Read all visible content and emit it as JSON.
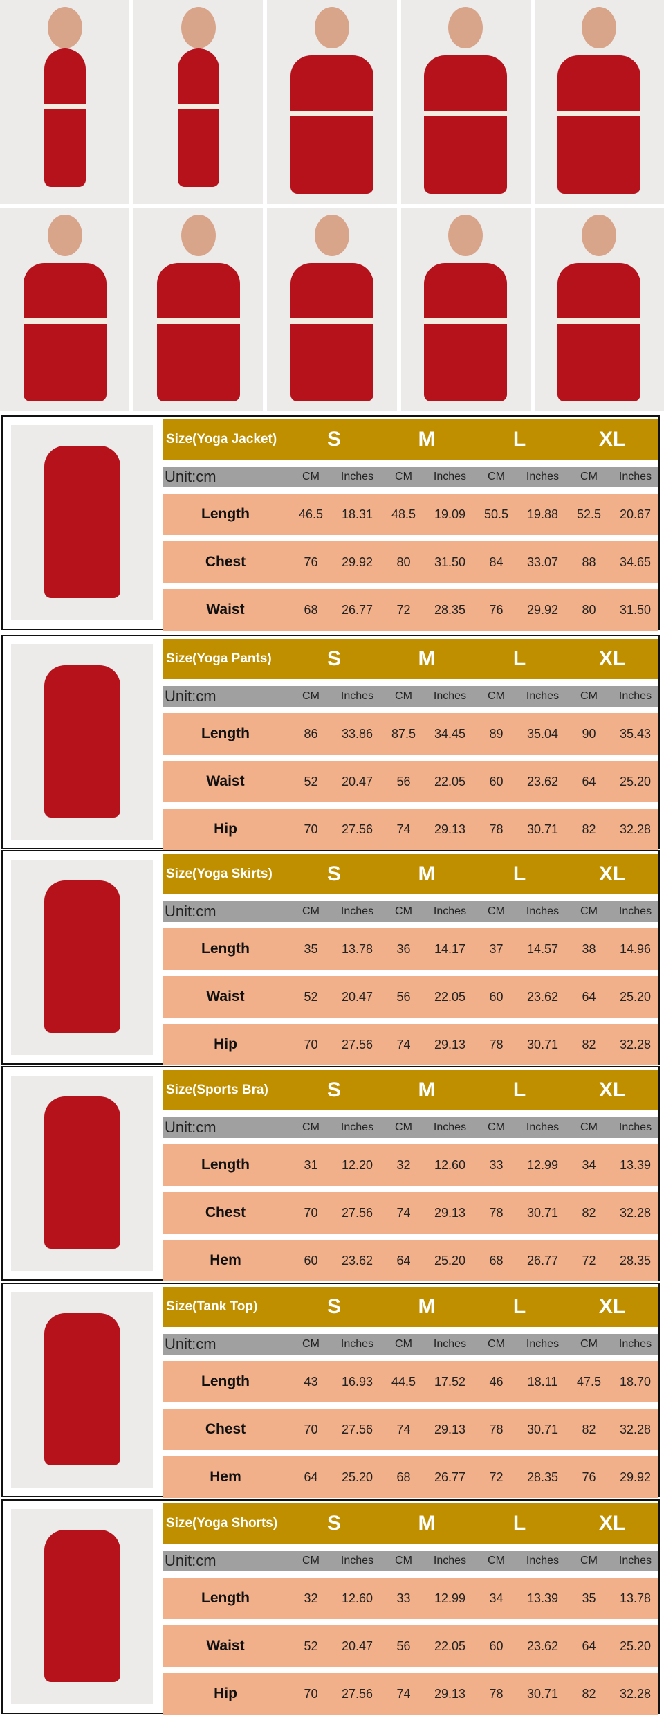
{
  "colors": {
    "header": "#bf8f00",
    "unit_row": "#a0a0a0",
    "data_row": "#f2b08a",
    "garment": "#b5121b"
  },
  "sizes": [
    "S",
    "M",
    "L",
    "XL"
  ],
  "unit_label": "Unit:cm",
  "col_units": [
    "CM",
    "Inches",
    "CM",
    "Inches",
    "CM",
    "Inches",
    "CM",
    "Inches"
  ],
  "tables": [
    {
      "title": "Size(Yoga Jacket)",
      "rows": [
        {
          "label": "Length",
          "values": [
            "46.5",
            "18.31",
            "48.5",
            "19.09",
            "50.5",
            "19.88",
            "52.5",
            "20.67"
          ]
        },
        {
          "label": "Chest",
          "values": [
            "76",
            "29.92",
            "80",
            "31.50",
            "84",
            "33.07",
            "88",
            "34.65"
          ]
        },
        {
          "label": "Waist",
          "values": [
            "68",
            "26.77",
            "72",
            "28.35",
            "76",
            "29.92",
            "80",
            "31.50"
          ]
        }
      ]
    },
    {
      "title": "Size(Yoga Pants)",
      "rows": [
        {
          "label": "Length",
          "values": [
            "86",
            "33.86",
            "87.5",
            "34.45",
            "89",
            "35.04",
            "90",
            "35.43"
          ]
        },
        {
          "label": "Waist",
          "values": [
            "52",
            "20.47",
            "56",
            "22.05",
            "60",
            "23.62",
            "64",
            "25.20"
          ]
        },
        {
          "label": "Hip",
          "values": [
            "70",
            "27.56",
            "74",
            "29.13",
            "78",
            "30.71",
            "82",
            "32.28"
          ]
        }
      ]
    },
    {
      "title": "Size(Yoga Skirts)",
      "rows": [
        {
          "label": "Length",
          "values": [
            "35",
            "13.78",
            "36",
            "14.17",
            "37",
            "14.57",
            "38",
            "14.96"
          ]
        },
        {
          "label": "Waist",
          "values": [
            "52",
            "20.47",
            "56",
            "22.05",
            "60",
            "23.62",
            "64",
            "25.20"
          ]
        },
        {
          "label": "Hip",
          "values": [
            "70",
            "27.56",
            "74",
            "29.13",
            "78",
            "30.71",
            "82",
            "32.28"
          ]
        }
      ]
    },
    {
      "title": "Size(Sports Bra)",
      "rows": [
        {
          "label": "Length",
          "values": [
            "31",
            "12.20",
            "32",
            "12.60",
            "33",
            "12.99",
            "34",
            "13.39"
          ]
        },
        {
          "label": "Chest",
          "values": [
            "70",
            "27.56",
            "74",
            "29.13",
            "78",
            "30.71",
            "82",
            "32.28"
          ]
        },
        {
          "label": "Hem",
          "values": [
            "60",
            "23.62",
            "64",
            "25.20",
            "68",
            "26.77",
            "72",
            "28.35"
          ]
        }
      ]
    },
    {
      "title": "Size(Tank Top)",
      "rows": [
        {
          "label": "Length",
          "values": [
            "43",
            "16.93",
            "44.5",
            "17.52",
            "46",
            "18.11",
            "47.5",
            "18.70"
          ]
        },
        {
          "label": "Chest",
          "values": [
            "70",
            "27.56",
            "74",
            "29.13",
            "78",
            "30.71",
            "82",
            "32.28"
          ]
        },
        {
          "label": "Hem",
          "values": [
            "64",
            "25.20",
            "68",
            "26.77",
            "72",
            "28.35",
            "76",
            "29.92"
          ]
        }
      ]
    },
    {
      "title": "Size(Yoga Shorts)",
      "rows": [
        {
          "label": "Length",
          "values": [
            "32",
            "12.60",
            "33",
            "12.99",
            "34",
            "13.39",
            "35",
            "13.78"
          ]
        },
        {
          "label": "Waist",
          "values": [
            "52",
            "20.47",
            "56",
            "22.05",
            "60",
            "23.62",
            "64",
            "25.20"
          ]
        },
        {
          "label": "Hip",
          "values": [
            "70",
            "27.56",
            "74",
            "29.13",
            "78",
            "30.71",
            "82",
            "32.28"
          ]
        }
      ]
    }
  ]
}
